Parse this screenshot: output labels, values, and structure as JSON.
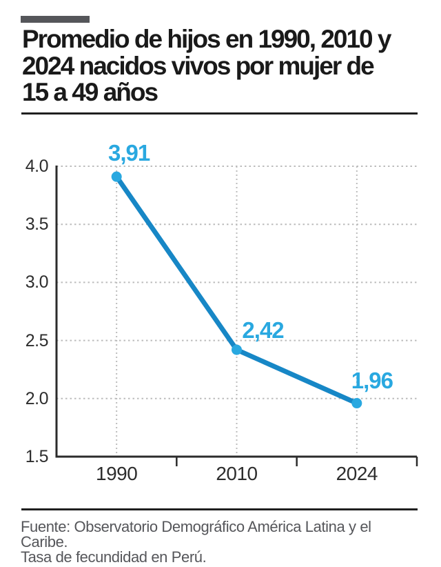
{
  "header": {
    "title_lines": [
      "Promedio de hijos en 1990, 2010 y",
      "2024 nacidos vivos por mujer de",
      "15 a 49 años"
    ]
  },
  "chart_data": {
    "type": "line",
    "title": "Promedio de hijos en 1990, 2010 y 2024 nacidos vivos por mujer de 15 a 49 años",
    "categories": [
      "1990",
      "2010",
      "2024"
    ],
    "values": [
      3.91,
      2.42,
      1.96
    ],
    "point_labels": [
      "3,91",
      "2,42",
      "1,96"
    ],
    "ylim": [
      1.5,
      4.0
    ],
    "y_ticks": [
      4.0,
      3.5,
      3.0,
      2.5,
      2.0,
      1.5
    ],
    "y_tick_labels": [
      "4.0",
      "3.5",
      "3.0",
      "2.5",
      "2.0",
      "1.5"
    ],
    "grid": "dashed",
    "legend": "none",
    "colors": {
      "line": "#1787c6",
      "marker": "#29a8e0",
      "point_label": "#29a8e0",
      "axis": "#2b2b2b",
      "grid": "#bcbcbc"
    }
  },
  "footer": {
    "source_line1": "Fuente: Observatorio Demográfico América Latina y el Caribe.",
    "source_line2": "Tasa de fecundidad en Perú."
  }
}
